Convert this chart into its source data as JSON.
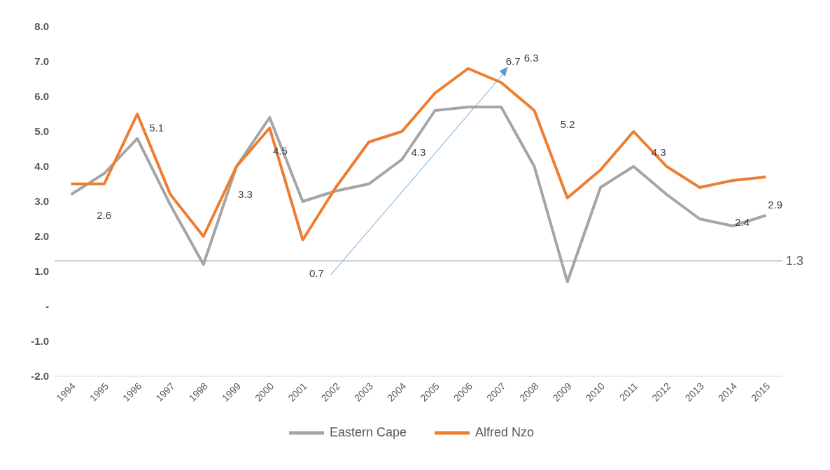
{
  "chart_data": {
    "type": "line",
    "categories": [
      "1994",
      "1995",
      "1996",
      "1997",
      "1998",
      "1999",
      "2000",
      "2001",
      "2002",
      "2003",
      "2004",
      "2005",
      "2006",
      "2007",
      "2008",
      "2009",
      "2010",
      "2011",
      "2012",
      "2013",
      "2014",
      "2015"
    ],
    "series": [
      {
        "name": "Eastern Cape",
        "color": "#a5a5a5",
        "values": [
          3.2,
          3.8,
          4.8,
          2.9,
          1.2,
          4.0,
          5.4,
          3.0,
          3.3,
          3.5,
          4.2,
          5.6,
          5.7,
          5.7,
          4.0,
          0.7,
          3.4,
          4.0,
          3.2,
          2.5,
          2.3,
          2.6
        ]
      },
      {
        "name": "Alfred Nzo",
        "color": "#ed7d31",
        "values": [
          3.5,
          3.5,
          5.5,
          3.2,
          2.0,
          4.0,
          5.1,
          1.9,
          3.4,
          4.7,
          5.0,
          6.1,
          6.8,
          6.4,
          5.6,
          3.1,
          3.9,
          5.0,
          4.0,
          3.4,
          3.6,
          3.7
        ]
      }
    ],
    "ylim": [
      -2,
      8
    ],
    "yticks": [
      {
        "value": -2,
        "label": "-2.0"
      },
      {
        "value": -1,
        "label": "-1.0"
      },
      {
        "value": 0,
        "label": "-"
      },
      {
        "value": 1,
        "label": "1.0"
      },
      {
        "value": 2,
        "label": "2.0"
      },
      {
        "value": 3,
        "label": "3.0"
      },
      {
        "value": 4,
        "label": "4.0"
      },
      {
        "value": 5,
        "label": "5.0"
      },
      {
        "value": 6,
        "label": "6.0"
      },
      {
        "value": 7,
        "label": "7.0"
      },
      {
        "value": 8,
        "label": "8.0"
      }
    ],
    "ref_lines": [
      {
        "axis": "y",
        "value": 1.3,
        "label": "1.3",
        "color": "#a0a0a0"
      }
    ],
    "annotations": [
      "2.6",
      "5.1",
      "3.3",
      "4.5",
      "0.7",
      "4.3",
      "6.7",
      "6.3",
      "5.2",
      "4.3",
      "2.4",
      "2.9"
    ],
    "grid": false,
    "legend": "bottom",
    "marker": "none",
    "line_style": "solid"
  }
}
